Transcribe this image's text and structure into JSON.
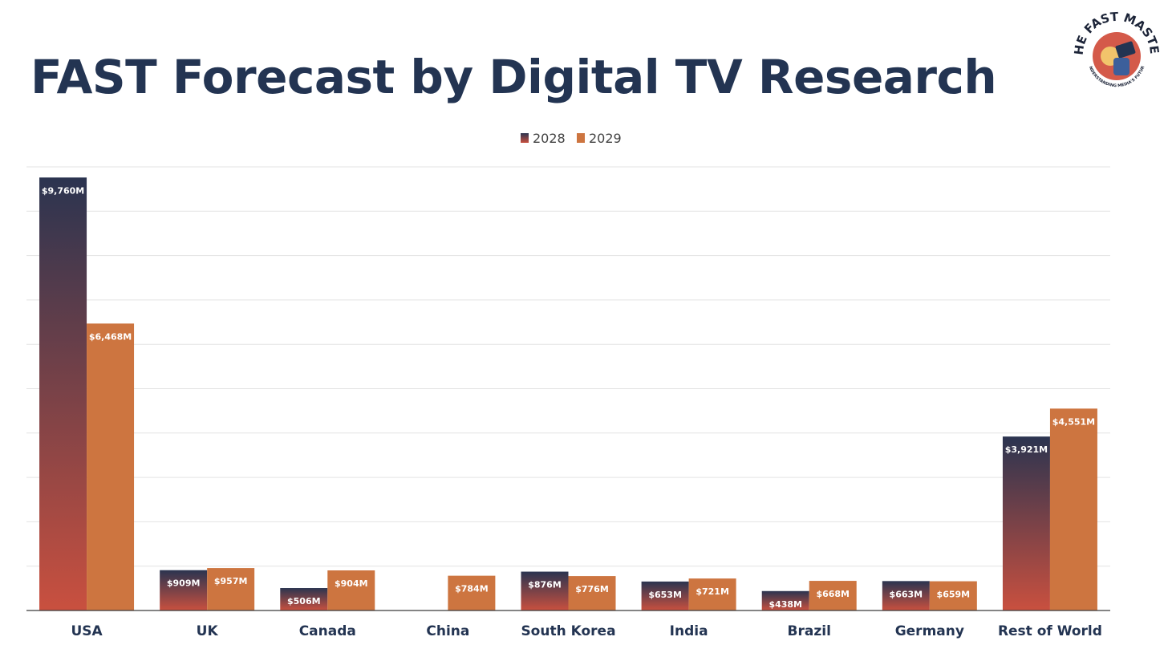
{
  "brand": {
    "name_top": "THE FAST MASTER",
    "tagline": "UNDERSTANDING MEDIA'S FUTURE"
  },
  "chart_data": {
    "type": "bar",
    "title": "FAST Forecast by Digital TV Research",
    "categories": [
      "USA",
      "UK",
      "Canada",
      "China",
      "South Korea",
      "India",
      "Brazil",
      "Germany",
      "Rest of World"
    ],
    "series": [
      {
        "name": "2028",
        "values": [
          9760,
          909,
          506,
          null,
          876,
          653,
          438,
          663,
          3921
        ],
        "labels": [
          "$9,760M",
          "$909M",
          "$506M",
          "",
          "$876M",
          "$653M",
          "$438M",
          "$663M",
          "$3,921M"
        ],
        "color_top": "#2b3450",
        "color_bottom": "#c9503f"
      },
      {
        "name": "2029",
        "values": [
          6468,
          957,
          904,
          784,
          776,
          721,
          668,
          659,
          4551
        ],
        "labels": [
          "$6,468M",
          "$957M",
          "$904M",
          "$784M",
          "$776M",
          "$721M",
          "$668M",
          "$659M",
          "$4,551M"
        ],
        "color": "#cd7540"
      }
    ],
    "ylim": [
      0,
      10000
    ],
    "grid": true,
    "legend": "top-center",
    "xlabel": "",
    "ylabel": ""
  }
}
